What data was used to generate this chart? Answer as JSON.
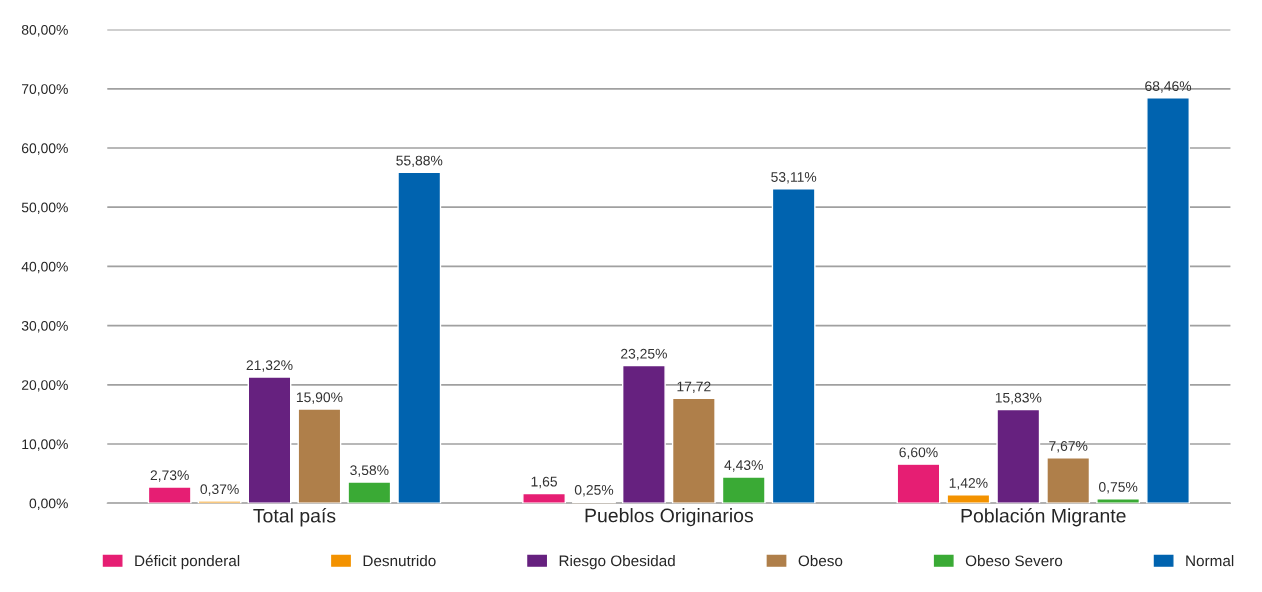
{
  "chart_data": {
    "type": "bar",
    "categories": [
      "Total país",
      "Pueblos Originarios",
      "Población Migrante"
    ],
    "series": [
      {
        "name": "Déficit ponderal",
        "color": "#e61e73",
        "values": [
          2.73,
          1.65,
          6.6
        ],
        "value_labels": [
          "2,73%",
          "1,65",
          "6,60%"
        ]
      },
      {
        "name": "Desnutrido",
        "color": "#f39200",
        "values": [
          0.37,
          0.25,
          1.42
        ],
        "value_labels": [
          "0,37%",
          "0,25%",
          "1,42%"
        ]
      },
      {
        "name": "Riesgo Obesidad",
        "color": "#66217f",
        "values": [
          21.32,
          23.25,
          15.83
        ],
        "value_labels": [
          "21,32%",
          "23,25%",
          "15,83%"
        ]
      },
      {
        "name": "Obeso",
        "color": "#af7f4a",
        "values": [
          15.9,
          17.72,
          7.67
        ],
        "value_labels": [
          "15,90%",
          "17,72",
          "7,67%"
        ]
      },
      {
        "name": "Obeso Severo",
        "color": "#3aaa35",
        "values": [
          3.58,
          4.43,
          0.75
        ],
        "value_labels": [
          "3,58%",
          "4,43%",
          "0,75%"
        ]
      },
      {
        "name": "Normal",
        "color": "#0063af",
        "values": [
          55.88,
          53.11,
          68.46
        ],
        "value_labels": [
          "55,88%",
          "53,11%",
          "68,46%"
        ]
      }
    ],
    "ylim": [
      0,
      80
    ],
    "yticks": [
      {
        "value": 0,
        "label": "0,00%"
      },
      {
        "value": 10,
        "label": "10,00%"
      },
      {
        "value": 20,
        "label": "20,00%"
      },
      {
        "value": 30,
        "label": "30,00%"
      },
      {
        "value": 40,
        "label": "40,00%"
      },
      {
        "value": 50,
        "label": "50,00%"
      },
      {
        "value": 60,
        "label": "60,00%"
      },
      {
        "value": 70,
        "label": "70,00%"
      },
      {
        "value": 80,
        "label": "80,00%"
      }
    ],
    "grid": "y",
    "legend": "bottom"
  }
}
